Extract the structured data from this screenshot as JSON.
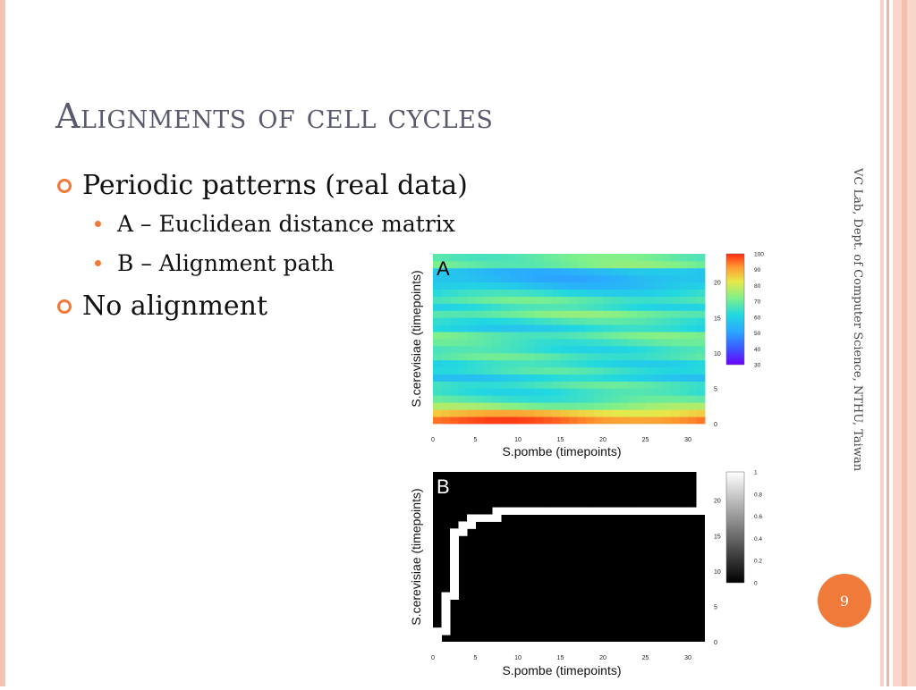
{
  "slide": {
    "title": "Alignments of cell cycles",
    "bullets": [
      {
        "text": "Periodic patterns (real data)",
        "sub": [
          "A – Euclidean distance matrix",
          "B – Alignment path"
        ]
      },
      {
        "text": "No alignment",
        "sub": []
      }
    ],
    "side_text": "VC Lab, Dept. of Computer Science, NTHU, Taiwan",
    "page_number": "9",
    "accent_color": "#f07a3a"
  },
  "chart_data": [
    {
      "type": "heatmap",
      "panel_label": "A",
      "xlabel": "S.pombe (timepoints)",
      "ylabel": "S.cerevisiae (timepoints)",
      "x_ticks": [
        "0",
        "5",
        "10",
        "15",
        "20",
        "25",
        "30"
      ],
      "y_ticks": [
        "0",
        "5",
        "10",
        "15",
        "20"
      ],
      "xlim": [
        0,
        32
      ],
      "ylim": [
        0,
        24
      ],
      "colorbar_ticks": [
        "30",
        "40",
        "50",
        "60",
        "70",
        "80",
        "90",
        "100"
      ],
      "colorbar_range": [
        30,
        100
      ],
      "colormap": "jet"
    },
    {
      "type": "heatmap",
      "panel_label": "B",
      "xlabel": "S.pombe (timepoints)",
      "ylabel": "S.cerevisiae (timepoints)",
      "x_ticks": [
        "0",
        "5",
        "10",
        "15",
        "20",
        "25",
        "30"
      ],
      "y_ticks": [
        "0",
        "5",
        "10",
        "15",
        "20"
      ],
      "xlim": [
        0,
        32
      ],
      "ylim": [
        0,
        24
      ],
      "colorbar_ticks": [
        "0",
        "0.2",
        "0.4",
        "0.6",
        "0.8",
        "1"
      ],
      "colorbar_range": [
        0,
        1
      ],
      "colormap": "gray",
      "alignment_path": [
        [
          0,
          0
        ],
        [
          0,
          1
        ],
        [
          1,
          1
        ],
        [
          1,
          2
        ],
        [
          1,
          3
        ],
        [
          1,
          4
        ],
        [
          1,
          5
        ],
        [
          1,
          6
        ],
        [
          2,
          6
        ],
        [
          2,
          7
        ],
        [
          2,
          8
        ],
        [
          2,
          9
        ],
        [
          2,
          10
        ],
        [
          2,
          11
        ],
        [
          2,
          12
        ],
        [
          2,
          13
        ],
        [
          2,
          14
        ],
        [
          2,
          15
        ],
        [
          3,
          15
        ],
        [
          3,
          16
        ],
        [
          4,
          16
        ],
        [
          4,
          17
        ],
        [
          5,
          17
        ],
        [
          6,
          17
        ],
        [
          7,
          17
        ],
        [
          7,
          18
        ],
        [
          8,
          18
        ],
        [
          9,
          18
        ],
        [
          10,
          18
        ],
        [
          11,
          18
        ],
        [
          12,
          18
        ],
        [
          13,
          18
        ],
        [
          14,
          18
        ],
        [
          15,
          18
        ],
        [
          16,
          18
        ],
        [
          17,
          18
        ],
        [
          18,
          18
        ],
        [
          19,
          18
        ],
        [
          20,
          18
        ],
        [
          21,
          18
        ],
        [
          22,
          18
        ],
        [
          23,
          18
        ],
        [
          24,
          18
        ],
        [
          25,
          18
        ],
        [
          26,
          18
        ],
        [
          27,
          18
        ],
        [
          28,
          18
        ],
        [
          29,
          18
        ],
        [
          30,
          18
        ],
        [
          31,
          18
        ],
        [
          31,
          19
        ],
        [
          31,
          20
        ],
        [
          31,
          21
        ],
        [
          31,
          22
        ],
        [
          31,
          23
        ]
      ]
    }
  ]
}
